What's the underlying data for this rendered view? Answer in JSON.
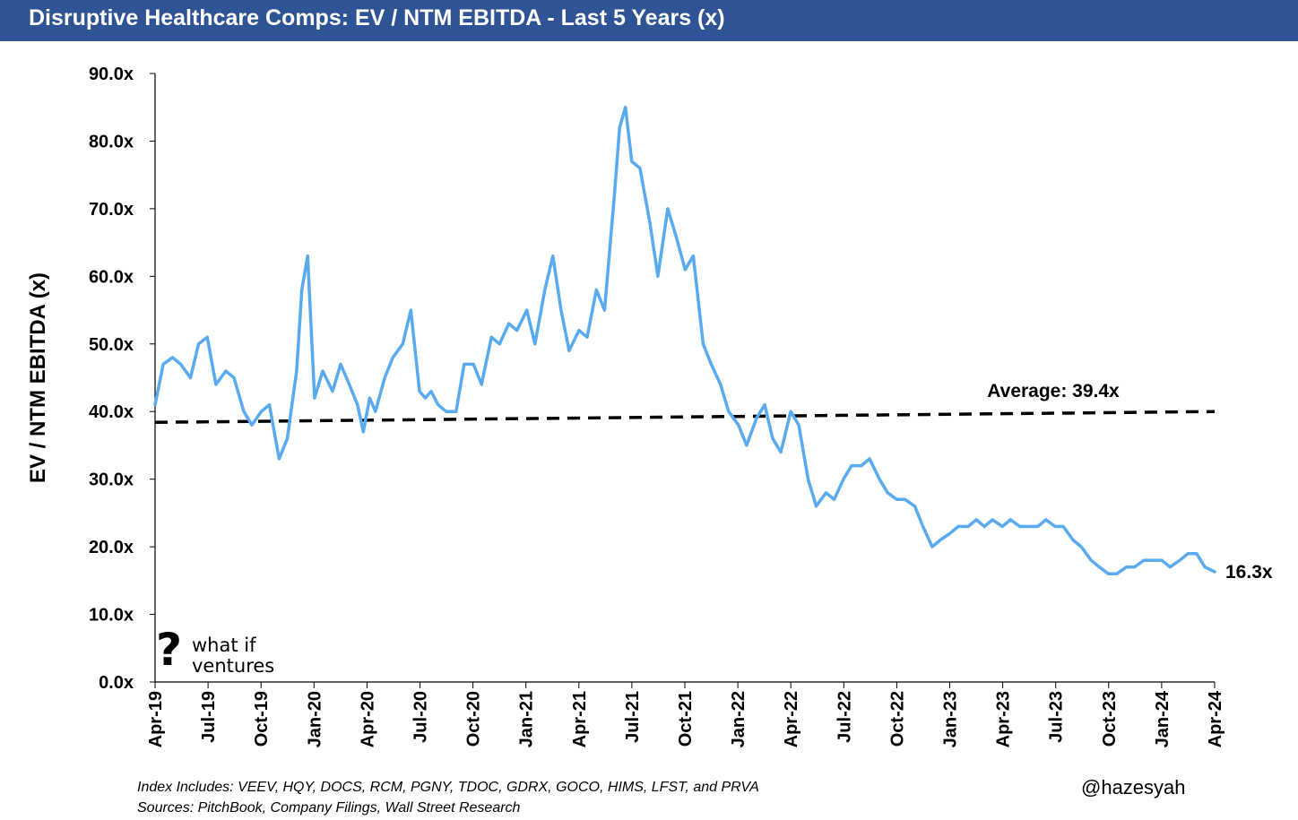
{
  "header": {
    "title": "Disruptive Healthcare Comps: EV / NTM EBITDA - Last 5 Years (x)",
    "background_color": "#2f5496"
  },
  "chart_data": {
    "type": "line",
    "title": "Disruptive Healthcare Comps: EV / NTM EBITDA - Last 5 Years (x)",
    "ylabel": "EV / NTM EBITDA (x)",
    "xlabel": "",
    "ylim": [
      0,
      90
    ],
    "yticks": [
      "0.0x",
      "10.0x",
      "20.0x",
      "30.0x",
      "40.0x",
      "50.0x",
      "60.0x",
      "70.0x",
      "80.0x",
      "90.0x"
    ],
    "xticks": [
      "Apr-19",
      "Jul-19",
      "Oct-19",
      "Jan-20",
      "Apr-20",
      "Jul-20",
      "Oct-20",
      "Jan-21",
      "Apr-21",
      "Jul-21",
      "Oct-21",
      "Jan-22",
      "Apr-22",
      "Jul-22",
      "Oct-22",
      "Jan-23",
      "Apr-23",
      "Jul-23",
      "Oct-23",
      "Jan-24",
      "Apr-24"
    ],
    "grid": false,
    "line_color": "#5aaaf0",
    "average_color": "#000000",
    "series": [
      {
        "x": [
          "2019-04-01",
          "2019-04-15",
          "2019-05-01",
          "2019-05-15",
          "2019-06-01",
          "2019-06-15",
          "2019-06-30",
          "2019-07-15",
          "2019-08-01",
          "2019-08-15",
          "2019-09-01",
          "2019-09-15",
          "2019-10-01",
          "2019-10-15",
          "2019-11-01",
          "2019-11-15",
          "2019-12-01",
          "2019-12-10",
          "2019-12-20",
          "2020-01-01",
          "2020-01-15",
          "2020-02-01",
          "2020-02-15",
          "2020-03-01",
          "2020-03-15",
          "2020-03-25",
          "2020-04-05",
          "2020-04-15",
          "2020-05-01",
          "2020-05-15",
          "2020-06-01",
          "2020-06-15",
          "2020-06-30",
          "2020-07-10",
          "2020-07-20",
          "2020-08-01",
          "2020-08-15",
          "2020-09-01",
          "2020-09-15",
          "2020-10-01",
          "2020-10-15",
          "2020-11-01",
          "2020-11-15",
          "2020-12-01",
          "2020-12-15",
          "2021-01-01",
          "2021-01-15",
          "2021-02-01",
          "2021-02-15",
          "2021-03-01",
          "2021-03-15",
          "2021-04-01",
          "2021-04-15",
          "2021-05-01",
          "2021-05-15",
          "2021-06-01",
          "2021-06-10",
          "2021-06-20",
          "2021-07-01",
          "2021-07-15",
          "2021-08-01",
          "2021-08-15",
          "2021-09-01",
          "2021-09-15",
          "2021-10-01",
          "2021-10-15",
          "2021-11-01",
          "2021-11-15",
          "2021-12-01",
          "2021-12-15",
          "2022-01-01",
          "2022-01-15",
          "2022-02-01",
          "2022-02-15",
          "2022-03-01",
          "2022-03-15",
          "2022-04-01",
          "2022-04-15",
          "2022-05-01",
          "2022-05-15",
          "2022-06-01",
          "2022-06-15",
          "2022-07-01",
          "2022-07-15",
          "2022-08-01",
          "2022-08-15",
          "2022-09-01",
          "2022-09-15",
          "2022-10-01",
          "2022-10-15",
          "2022-11-01",
          "2022-11-15",
          "2022-12-01",
          "2022-12-15",
          "2023-01-01",
          "2023-01-15",
          "2023-02-01",
          "2023-02-15",
          "2023-03-01",
          "2023-03-15",
          "2023-04-01",
          "2023-04-15",
          "2023-05-01",
          "2023-05-15",
          "2023-06-01",
          "2023-06-15",
          "2023-07-01",
          "2023-07-15",
          "2023-08-01",
          "2023-08-15",
          "2023-09-01",
          "2023-09-15",
          "2023-10-01",
          "2023-10-15",
          "2023-11-01",
          "2023-11-15",
          "2023-12-01",
          "2023-12-15",
          "2024-01-01",
          "2024-01-15",
          "2024-02-01",
          "2024-02-15",
          "2024-03-01",
          "2024-03-15",
          "2024-04-01"
        ],
        "y": [
          41,
          47,
          48,
          47,
          45,
          50,
          51,
          44,
          46,
          45,
          40,
          38,
          40,
          41,
          33,
          36,
          46,
          58,
          63,
          42,
          46,
          43,
          47,
          44,
          41,
          37,
          42,
          40,
          45,
          48,
          50,
          55,
          43,
          42,
          43,
          41,
          40,
          40,
          47,
          47,
          44,
          51,
          50,
          53,
          52,
          55,
          50,
          58,
          63,
          55,
          49,
          52,
          51,
          58,
          55,
          72,
          82,
          85,
          77,
          76,
          68,
          60,
          70,
          66,
          61,
          63,
          50,
          47,
          44,
          40,
          38,
          35,
          39,
          41,
          36,
          34,
          40,
          38,
          30,
          26,
          28,
          27,
          30,
          32,
          32,
          33,
          30,
          28,
          27,
          27,
          26,
          23,
          20,
          21,
          22,
          23,
          23,
          24,
          23,
          24,
          23,
          24,
          23,
          23,
          23,
          24,
          23,
          23,
          21,
          20,
          18,
          17,
          16,
          16,
          17,
          17,
          18,
          18,
          18,
          17,
          18,
          19,
          19,
          17,
          16.3
        ]
      }
    ],
    "average": {
      "label": "Average: 39.4x",
      "start": 38.4,
      "end": 40.0
    },
    "end_label": "16.3x"
  },
  "footnotes": {
    "index": "Index Includes: VEEV, HQY, DOCS, RCM, PGNY, TDOC, GDRX, GOCO, HIMS, LFST, and PRVA",
    "sources": "Sources: PitchBook, Company Filings, Wall Street Research"
  },
  "handle": "@hazesyah",
  "logo": {
    "line1": "what if",
    "line2": "ventures",
    "mark": "?"
  }
}
